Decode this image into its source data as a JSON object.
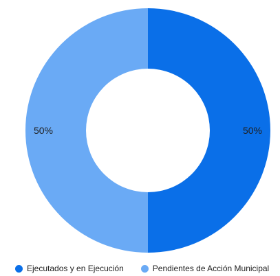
{
  "chart_data": {
    "type": "pie",
    "subtype": "donut",
    "title": "",
    "slices": [
      {
        "name": "Ejecutados y en Ejecución",
        "value": 50,
        "label": "50%",
        "color": "#0a6fe8"
      },
      {
        "name": "Pendientes de Acción Municipal",
        "value": 50,
        "label": "50%",
        "color": "#6aaaf5"
      }
    ],
    "legend_position": "bottom-left"
  }
}
